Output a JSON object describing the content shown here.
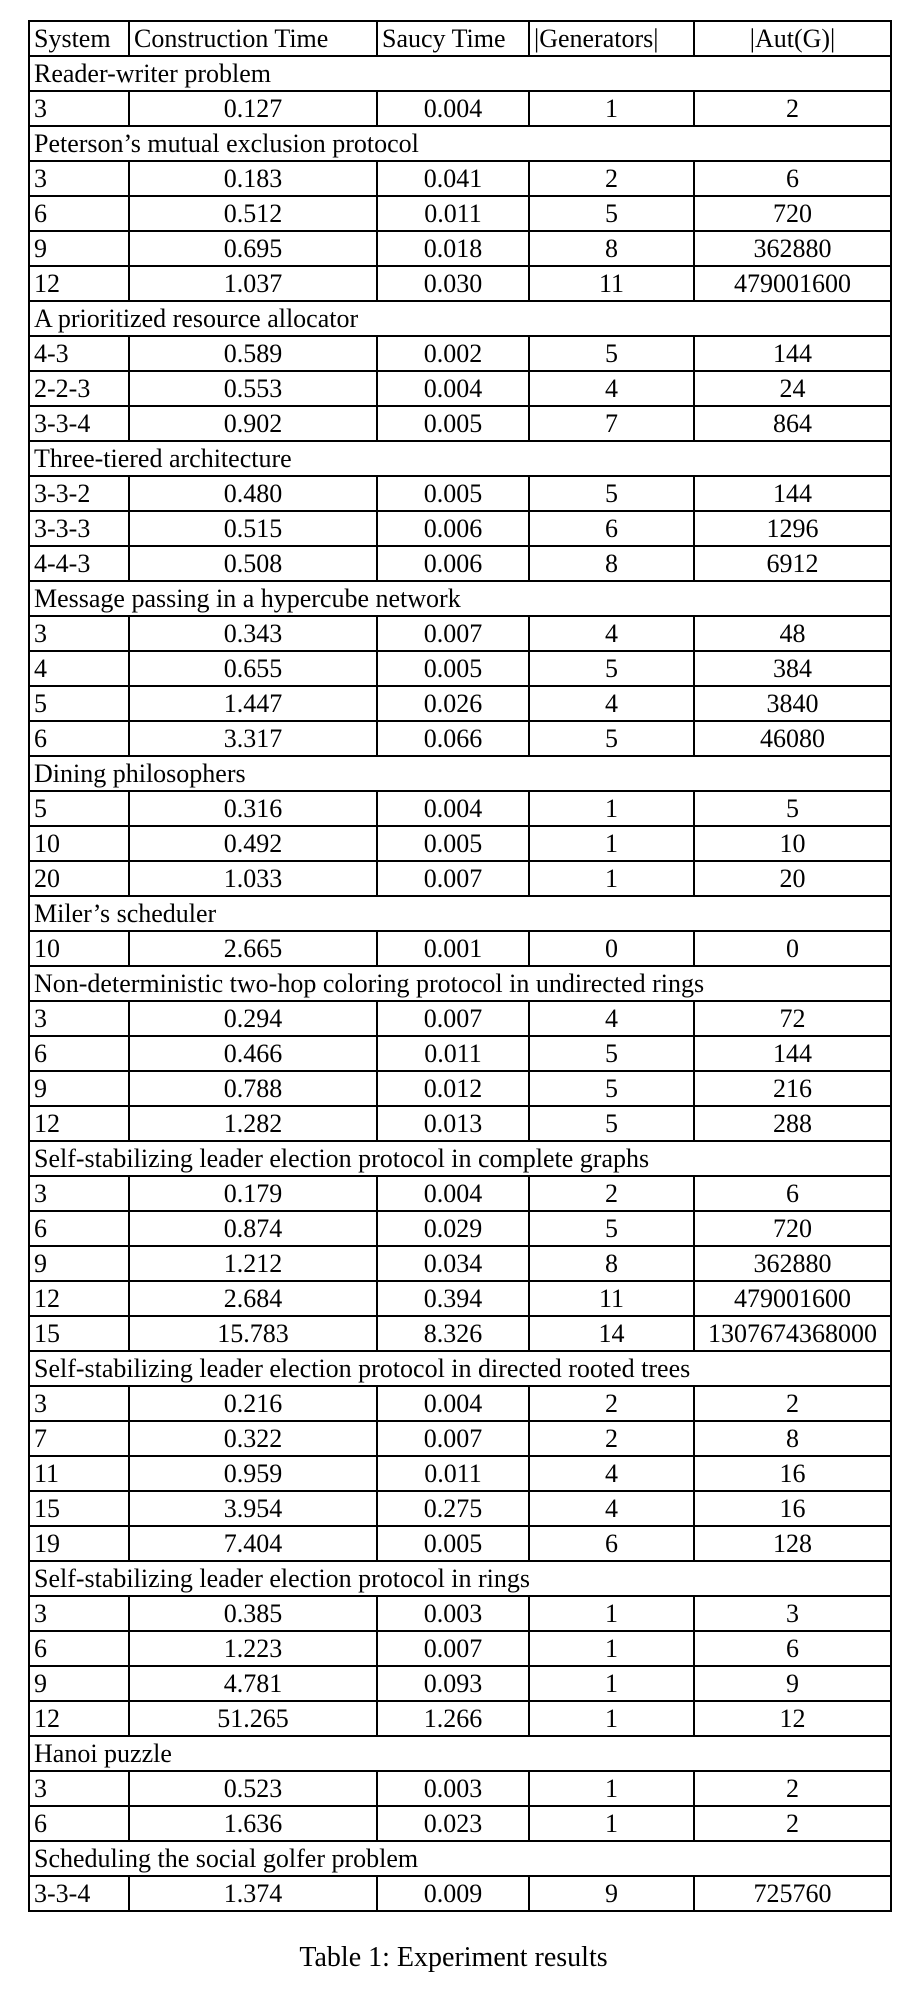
{
  "caption": "Table 1: Experiment results",
  "table": {
    "columns": [
      "System",
      "Construction Time",
      "Saucy Time",
      "|Generators|",
      "|Aut(G)|"
    ],
    "sections": [
      {
        "title": "Reader-writer problem",
        "rows": [
          [
            "3",
            "0.127",
            "0.004",
            "1",
            "2"
          ]
        ]
      },
      {
        "title": "Peterson’s mutual exclusion protocol",
        "rows": [
          [
            "3",
            "0.183",
            "0.041",
            "2",
            "6"
          ],
          [
            "6",
            "0.512",
            "0.011",
            "5",
            "720"
          ],
          [
            "9",
            "0.695",
            "0.018",
            "8",
            "362880"
          ],
          [
            "12",
            "1.037",
            "0.030",
            "11",
            "479001600"
          ]
        ]
      },
      {
        "title": "A prioritized resource allocator",
        "rows": [
          [
            "4-3",
            "0.589",
            "0.002",
            "5",
            "144"
          ],
          [
            "2-2-3",
            "0.553",
            "0.004",
            "4",
            "24"
          ],
          [
            "3-3-4",
            "0.902",
            "0.005",
            "7",
            "864"
          ]
        ]
      },
      {
        "title": "Three-tiered architecture",
        "rows": [
          [
            "3-3-2",
            "0.480",
            "0.005",
            "5",
            "144"
          ],
          [
            "3-3-3",
            "0.515",
            "0.006",
            "6",
            "1296"
          ],
          [
            "4-4-3",
            "0.508",
            "0.006",
            "8",
            "6912"
          ]
        ]
      },
      {
        "title": "Message passing in a hypercube network",
        "rows": [
          [
            "3",
            "0.343",
            "0.007",
            "4",
            "48"
          ],
          [
            "4",
            "0.655",
            "0.005",
            "5",
            "384"
          ],
          [
            "5",
            "1.447",
            "0.026",
            "4",
            "3840"
          ],
          [
            "6",
            "3.317",
            "0.066",
            "5",
            "46080"
          ]
        ]
      },
      {
        "title": "Dining philosophers",
        "rows": [
          [
            "5",
            "0.316",
            "0.004",
            "1",
            "5"
          ],
          [
            "10",
            "0.492",
            "0.005",
            "1",
            "10"
          ],
          [
            "20",
            "1.033",
            "0.007",
            "1",
            "20"
          ]
        ]
      },
      {
        "title": "Miler’s scheduler",
        "rows": [
          [
            "10",
            "2.665",
            "0.001",
            "0",
            "0"
          ]
        ]
      },
      {
        "title": "Non-deterministic two-hop coloring protocol in undirected rings",
        "rows": [
          [
            "3",
            "0.294",
            "0.007",
            "4",
            "72"
          ],
          [
            "6",
            "0.466",
            "0.011",
            "5",
            "144"
          ],
          [
            "9",
            "0.788",
            "0.012",
            "5",
            "216"
          ],
          [
            "12",
            "1.282",
            "0.013",
            "5",
            "288"
          ]
        ]
      },
      {
        "title": "Self-stabilizing leader election protocol in complete graphs",
        "rows": [
          [
            "3",
            "0.179",
            "0.004",
            "2",
            "6"
          ],
          [
            "6",
            "0.874",
            "0.029",
            "5",
            "720"
          ],
          [
            "9",
            "1.212",
            "0.034",
            "8",
            "362880"
          ],
          [
            "12",
            "2.684",
            "0.394",
            "11",
            "479001600"
          ],
          [
            "15",
            "15.783",
            "8.326",
            "14",
            "1307674368000"
          ]
        ]
      },
      {
        "title": "Self-stabilizing leader election protocol in directed rooted trees",
        "rows": [
          [
            "3",
            "0.216",
            "0.004",
            "2",
            "2"
          ],
          [
            "7",
            "0.322",
            "0.007",
            "2",
            "8"
          ],
          [
            "11",
            "0.959",
            "0.011",
            "4",
            "16"
          ],
          [
            "15",
            "3.954",
            "0.275",
            "4",
            "16"
          ],
          [
            "19",
            "7.404",
            "0.005",
            "6",
            "128"
          ]
        ]
      },
      {
        "title": "Self-stabilizing leader election protocol in rings",
        "rows": [
          [
            "3",
            "0.385",
            "0.003",
            "1",
            "3"
          ],
          [
            "6",
            "1.223",
            "0.007",
            "1",
            "6"
          ],
          [
            "9",
            "4.781",
            "0.093",
            "1",
            "9"
          ],
          [
            "12",
            "51.265",
            "1.266",
            "1",
            "12"
          ]
        ]
      },
      {
        "title": "Hanoi puzzle",
        "rows": [
          [
            "3",
            "0.523",
            "0.003",
            "1",
            "2"
          ],
          [
            "6",
            "1.636",
            "0.023",
            "1",
            "2"
          ]
        ]
      },
      {
        "title": "Scheduling the social golfer problem",
        "rows": [
          [
            "3-3-4",
            "1.374",
            "0.009",
            "9",
            "725760"
          ]
        ]
      }
    ]
  }
}
